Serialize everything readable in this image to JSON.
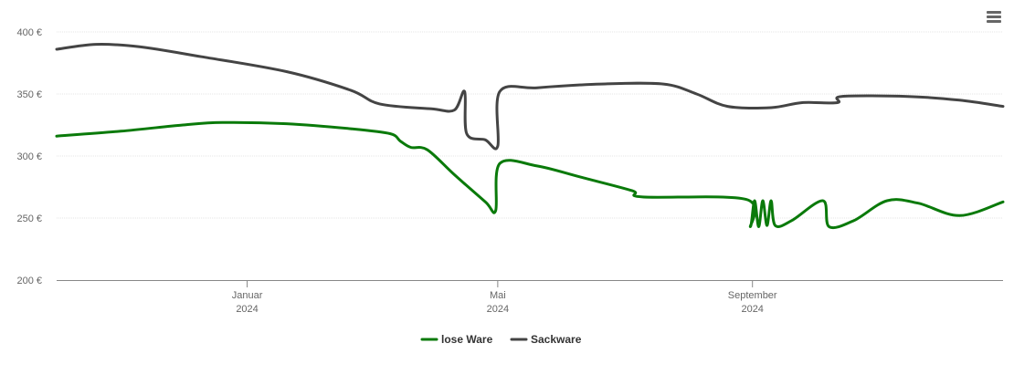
{
  "menu": {
    "icon": "hamburger-menu-icon"
  },
  "chart_data": {
    "type": "line",
    "title": "",
    "xlabel": "",
    "ylabel": "",
    "ylim": [
      200,
      400
    ],
    "yticks": [
      {
        "value": 400,
        "label": "400 €"
      },
      {
        "value": 350,
        "label": "350 €"
      },
      {
        "value": 300,
        "label": "300 €"
      },
      {
        "value": 250,
        "label": "250 €"
      },
      {
        "value": 200,
        "label": "200 €"
      }
    ],
    "xlim": [
      "2023-10-01",
      "2024-12-31"
    ],
    "xticks": [
      {
        "date": "2024-01-01",
        "line1": "Januar",
        "line2": "2024"
      },
      {
        "date": "2024-05-01",
        "line1": "Mai",
        "line2": "2024"
      },
      {
        "date": "2024-09-01",
        "line1": "September",
        "line2": "2024"
      }
    ],
    "grid": true,
    "legend_position": "bottom-center",
    "series": [
      {
        "name": "lose Ware",
        "color": "#0a7a0a",
        "points": [
          [
            "2023-10-01",
            316
          ],
          [
            "2023-11-01",
            320
          ],
          [
            "2023-12-01",
            325
          ],
          [
            "2023-12-20",
            327
          ],
          [
            "2024-01-20",
            326
          ],
          [
            "2024-02-20",
            322
          ],
          [
            "2024-03-10",
            318
          ],
          [
            "2024-03-15",
            312
          ],
          [
            "2024-03-20",
            307
          ],
          [
            "2024-03-28",
            305
          ],
          [
            "2024-04-10",
            285
          ],
          [
            "2024-04-25",
            263
          ],
          [
            "2024-04-30",
            256
          ],
          [
            "2024-05-02",
            294
          ],
          [
            "2024-05-20",
            292
          ],
          [
            "2024-06-10",
            283
          ],
          [
            "2024-07-05",
            272
          ],
          [
            "2024-07-10",
            267
          ],
          [
            "2024-08-29",
            265
          ],
          [
            "2024-08-31",
            243
          ],
          [
            "2024-09-02",
            264
          ],
          [
            "2024-09-04",
            243
          ],
          [
            "2024-09-06",
            264
          ],
          [
            "2024-09-08",
            244
          ],
          [
            "2024-09-10",
            264
          ],
          [
            "2024-09-12",
            244
          ],
          [
            "2024-09-20",
            248
          ],
          [
            "2024-10-05",
            264
          ],
          [
            "2024-10-08",
            243
          ],
          [
            "2024-10-20",
            248
          ],
          [
            "2024-11-05",
            264
          ],
          [
            "2024-11-20",
            262
          ],
          [
            "2024-12-10",
            252
          ],
          [
            "2024-12-31",
            263
          ]
        ]
      },
      {
        "name": "Sackware",
        "color": "#444444",
        "points": [
          [
            "2023-10-01",
            386
          ],
          [
            "2023-10-20",
            390
          ],
          [
            "2023-11-10",
            388
          ],
          [
            "2023-12-10",
            380
          ],
          [
            "2024-01-20",
            368
          ],
          [
            "2024-02-20",
            353
          ],
          [
            "2024-03-05",
            342
          ],
          [
            "2024-03-30",
            338
          ],
          [
            "2024-04-10",
            337
          ],
          [
            "2024-04-15",
            352
          ],
          [
            "2024-04-16",
            318
          ],
          [
            "2024-04-25",
            313
          ],
          [
            "2024-05-01",
            308
          ],
          [
            "2024-05-02",
            352
          ],
          [
            "2024-05-20",
            355
          ],
          [
            "2024-06-20",
            358
          ],
          [
            "2024-07-20",
            358
          ],
          [
            "2024-08-05",
            350
          ],
          [
            "2024-08-20",
            340
          ],
          [
            "2024-09-10",
            339
          ],
          [
            "2024-09-25",
            343
          ],
          [
            "2024-10-12",
            343
          ],
          [
            "2024-10-14",
            348
          ],
          [
            "2024-11-15",
            348
          ],
          [
            "2024-12-10",
            345
          ],
          [
            "2024-12-31",
            340
          ]
        ]
      }
    ]
  }
}
